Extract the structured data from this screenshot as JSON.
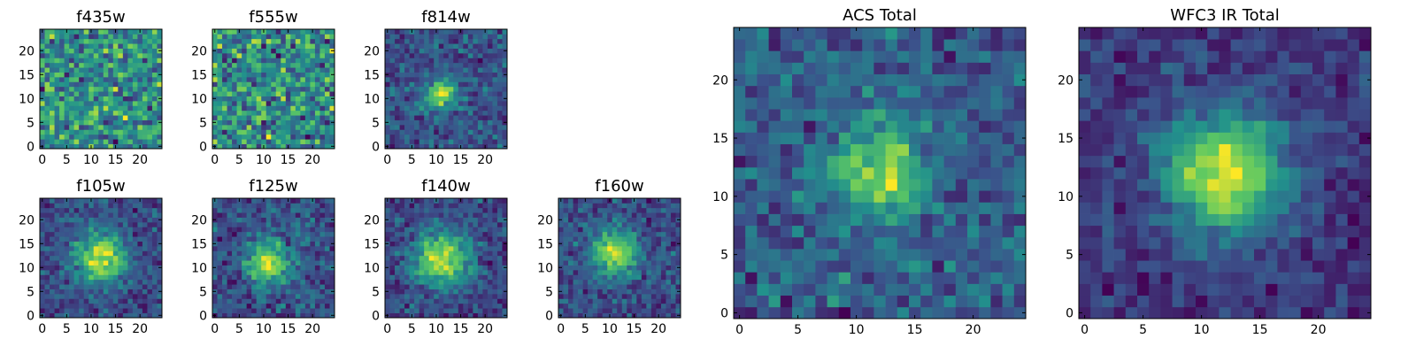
{
  "figure": {
    "colormap": "viridis",
    "colors": [
      "#440154",
      "#3b528b",
      "#21918c",
      "#5ec962",
      "#fde725"
    ]
  },
  "chart_data": [
    {
      "type": "heatmap",
      "title": "f435w",
      "size": 25,
      "noise": 1.0,
      "peak": 0.0,
      "sigma": 3,
      "center": [
        12,
        11
      ],
      "bias": 0.5,
      "xticks": [
        0,
        5,
        10,
        15,
        20
      ],
      "yticks": [
        0,
        5,
        10,
        15,
        20
      ],
      "xlim": [
        0,
        24
      ],
      "ylim": [
        0,
        24
      ],
      "seed": 11
    },
    {
      "type": "heatmap",
      "title": "f555w",
      "size": 25,
      "noise": 1.0,
      "peak": 0.0,
      "sigma": 3,
      "center": [
        12,
        11
      ],
      "bias": 0.55,
      "xticks": [
        0,
        5,
        10,
        15,
        20
      ],
      "yticks": [
        0,
        5,
        10,
        15,
        20
      ],
      "xlim": [
        0,
        24
      ],
      "ylim": [
        0,
        24
      ],
      "seed": 23
    },
    {
      "type": "heatmap",
      "title": "f814w",
      "size": 25,
      "noise": 0.55,
      "peak": 0.9,
      "sigma": 2.2,
      "center": [
        11,
        11
      ],
      "bias": 0.35,
      "xticks": [
        0,
        5,
        10,
        15,
        20
      ],
      "yticks": [
        0,
        5,
        10,
        15,
        20
      ],
      "xlim": [
        0,
        24
      ],
      "ylim": [
        0,
        24
      ],
      "seed": 37
    },
    {
      "type": "heatmap",
      "title": "f105w",
      "size": 25,
      "noise": 0.4,
      "peak": 0.85,
      "sigma": 3.5,
      "center": [
        12,
        12
      ],
      "bias": 0.35,
      "xticks": [
        0,
        5,
        10,
        15,
        20
      ],
      "yticks": [
        0,
        5,
        10,
        15,
        20
      ],
      "xlim": [
        0,
        24
      ],
      "ylim": [
        0,
        24
      ],
      "seed": 41
    },
    {
      "type": "heatmap",
      "title": "f125w",
      "size": 25,
      "noise": 0.45,
      "peak": 0.8,
      "sigma": 3.0,
      "center": [
        11,
        11
      ],
      "bias": 0.35,
      "xticks": [
        0,
        5,
        10,
        15,
        20
      ],
      "yticks": [
        0,
        5,
        10,
        15,
        20
      ],
      "xlim": [
        0,
        24
      ],
      "ylim": [
        0,
        24
      ],
      "seed": 53
    },
    {
      "type": "heatmap",
      "title": "f140w",
      "size": 25,
      "noise": 0.4,
      "peak": 0.85,
      "sigma": 4.0,
      "center": [
        11,
        12
      ],
      "bias": 0.4,
      "xticks": [
        0,
        5,
        10,
        15,
        20
      ],
      "yticks": [
        0,
        5,
        10,
        15,
        20
      ],
      "xlim": [
        0,
        24
      ],
      "ylim": [
        0,
        24
      ],
      "seed": 67
    },
    {
      "type": "heatmap",
      "title": "f160w",
      "size": 25,
      "noise": 0.45,
      "peak": 0.85,
      "sigma": 3.2,
      "center": [
        11,
        13
      ],
      "bias": 0.35,
      "xticks": [
        0,
        5,
        10,
        15,
        20
      ],
      "yticks": [
        0,
        5,
        10,
        15,
        20
      ],
      "xlim": [
        0,
        24
      ],
      "ylim": [
        0,
        24
      ],
      "seed": 79
    },
    {
      "type": "heatmap",
      "title": "ACS Total",
      "size": 25,
      "noise": 0.5,
      "peak": 0.75,
      "sigma": 2.6,
      "center": [
        12,
        12
      ],
      "bias": 0.45,
      "xticks": [
        0,
        5,
        10,
        15,
        20
      ],
      "yticks": [
        0,
        5,
        10,
        15,
        20
      ],
      "xlim": [
        0,
        24
      ],
      "ylim": [
        0,
        24
      ],
      "seed": 97
    },
    {
      "type": "heatmap",
      "title": "WFC3 IR Total",
      "size": 25,
      "noise": 0.3,
      "peak": 0.9,
      "sigma": 3.6,
      "center": [
        12,
        12
      ],
      "bias": 0.35,
      "xticks": [
        0,
        5,
        10,
        15,
        20
      ],
      "yticks": [
        0,
        5,
        10,
        15,
        20
      ],
      "xlim": [
        0,
        24
      ],
      "ylim": [
        0,
        24
      ],
      "seed": 131
    }
  ]
}
